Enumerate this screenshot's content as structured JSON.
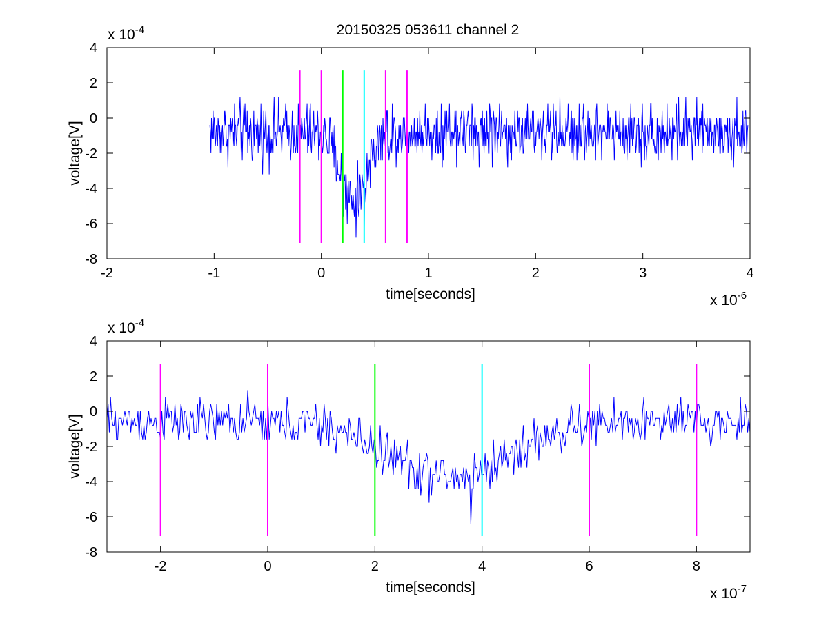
{
  "figure": {
    "title": "20150325 053611 channel 2"
  },
  "colors": {
    "trace": "#0000ff",
    "magenta": "#ff00ff",
    "green": "#00ff00",
    "cyan": "#00ffff",
    "axes": "#000000",
    "background": "#ffffff"
  },
  "chart_data": [
    {
      "type": "line",
      "title": "20150325 053611 channel 2",
      "xlabel": "time[seconds]",
      "ylabel": "voltage[V]",
      "x_multiplier": "x 10",
      "x_exponent": "-6",
      "y_multiplier": "x 10",
      "y_exponent": "-4",
      "xlim": [
        -2,
        4
      ],
      "ylim": [
        -8,
        4
      ],
      "x_ticks": [
        -2,
        -1,
        0,
        1,
        2,
        3,
        4
      ],
      "y_ticks": [
        -8,
        -6,
        -4,
        -2,
        0,
        2,
        4
      ],
      "x_tick_labels": [
        "-2",
        "-1",
        "0",
        "1",
        "2",
        "3",
        "4"
      ],
      "y_tick_labels": [
        "-8",
        "-6",
        "-4",
        "-2",
        "0",
        "2",
        "4"
      ],
      "grid": false,
      "trace": {
        "x_range": [
          -1.04,
          3.98
        ],
        "baseline": -0.8,
        "noise_amplitude": 1.3,
        "dip": [
          {
            "center": 0.3,
            "width": 0.12,
            "depth": -3.6
          }
        ],
        "min_point": {
          "x": 0.4,
          "y": -6.4
        }
      },
      "markers": [
        {
          "x": -0.2,
          "y_range": [
            -7.1,
            2.7
          ],
          "color": "#ff00ff"
        },
        {
          "x": 0.0,
          "y_range": [
            -7.1,
            2.7
          ],
          "color": "#ff00ff"
        },
        {
          "x": 0.2,
          "y_range": [
            -7.1,
            2.7
          ],
          "color": "#00ff00"
        },
        {
          "x": 0.4,
          "y_range": [
            -7.1,
            2.7
          ],
          "color": "#00ffff"
        },
        {
          "x": 0.6,
          "y_range": [
            -7.1,
            2.7
          ],
          "color": "#ff00ff"
        },
        {
          "x": 0.8,
          "y_range": [
            -7.1,
            2.7
          ],
          "color": "#ff00ff"
        }
      ]
    },
    {
      "type": "line",
      "xlabel": "time[seconds]",
      "ylabel": "voltage[V]",
      "x_multiplier": "x 10",
      "x_exponent": "-7",
      "y_multiplier": "x 10",
      "y_exponent": "-4",
      "xlim": [
        -3,
        9
      ],
      "ylim": [
        -8,
        4
      ],
      "x_ticks": [
        -2,
        0,
        2,
        4,
        6,
        8
      ],
      "y_ticks": [
        -8,
        -6,
        -4,
        -2,
        0,
        2,
        4
      ],
      "x_tick_labels": [
        "-2",
        "0",
        "2",
        "4",
        "6",
        "8"
      ],
      "y_tick_labels": [
        "-8",
        "-6",
        "-4",
        "-2",
        "0",
        "2",
        "4"
      ],
      "grid": false,
      "trace": {
        "x_range": [
          -3,
          9
        ],
        "baseline": -0.6,
        "noise_amplitude": 1.0,
        "dip": [
          {
            "center": 3.4,
            "width": 1.1,
            "depth": -3.2
          }
        ],
        "min_point": {
          "x": 3.8,
          "y": -6.4
        }
      },
      "markers": [
        {
          "x": -2,
          "y_range": [
            -7.1,
            2.7
          ],
          "color": "#ff00ff"
        },
        {
          "x": 0,
          "y_range": [
            -7.1,
            2.7
          ],
          "color": "#ff00ff"
        },
        {
          "x": 2,
          "y_range": [
            -7.1,
            2.7
          ],
          "color": "#00ff00"
        },
        {
          "x": 4,
          "y_range": [
            -7.1,
            2.7
          ],
          "color": "#00ffff"
        },
        {
          "x": 6,
          "y_range": [
            -7.1,
            2.7
          ],
          "color": "#ff00ff"
        },
        {
          "x": 8,
          "y_range": [
            -7.1,
            2.7
          ],
          "color": "#ff00ff"
        }
      ]
    }
  ]
}
